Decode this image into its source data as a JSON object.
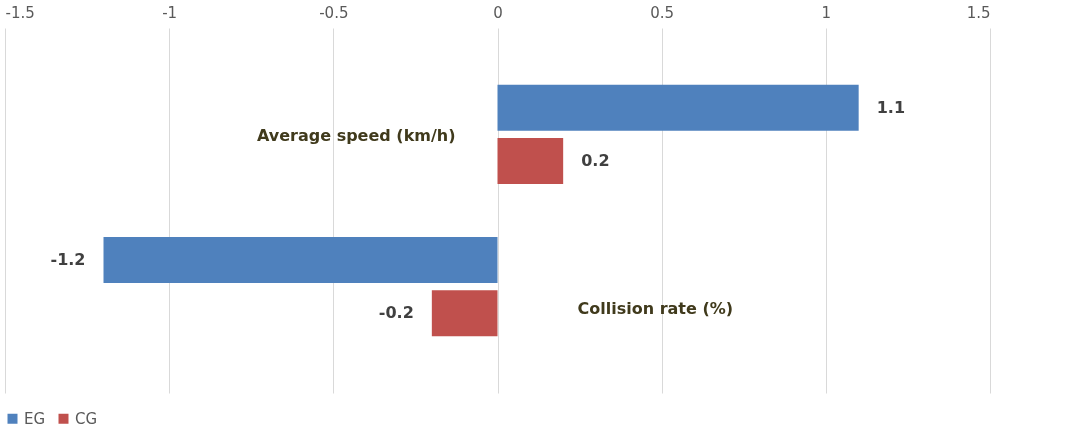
{
  "chart_data": {
    "type": "bar",
    "orientation": "horizontal",
    "categories": [
      "Average speed (km/h)",
      "Collision rate (%)"
    ],
    "series": [
      {
        "name": "EG",
        "color": "#4f81bd",
        "values": [
          1.1,
          -1.2
        ]
      },
      {
        "name": "CG",
        "color": "#c0504d",
        "values": [
          0.2,
          -0.2
        ]
      }
    ],
    "xlim": [
      -1.5,
      1.5
    ],
    "xticks": [
      -1.5,
      {
        "value": -1,
        "label": "-1"
      },
      -0.5,
      {
        "value": 0,
        "label": "0"
      },
      0.5,
      {
        "value": 1,
        "label": "1"
      },
      1.5
    ],
    "grid": "x",
    "legend": "bottom",
    "data_labels": true
  }
}
